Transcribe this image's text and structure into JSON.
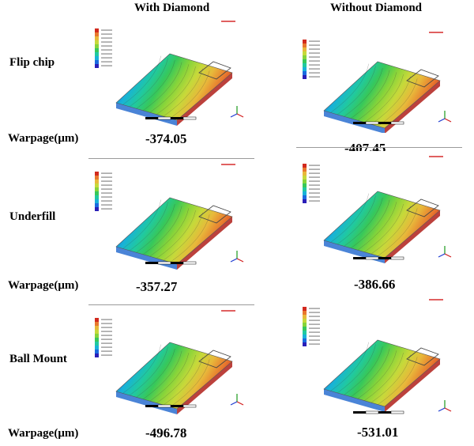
{
  "headers": {
    "with": "With Diamond",
    "without": "Without Diamond"
  },
  "rows": [
    {
      "label": "Flip chip",
      "warpage_label": "Warpage(μm)",
      "with_value": "-374.05",
      "without_value": "-407.45"
    },
    {
      "label": "Underfill",
      "warpage_label": "Warpage(μm)",
      "with_value": "-357.27",
      "without_value": "-386.66"
    },
    {
      "label": "Ball Mount",
      "warpage_label": "Warpage(μm)",
      "with_value": "-496.78",
      "without_value": "-531.01"
    }
  ],
  "colormap": [
    "#2a1fb8",
    "#1a6be0",
    "#18b2d8",
    "#20c9a0",
    "#37c85a",
    "#86d43a",
    "#c6d93a",
    "#e8b83a",
    "#e8782e",
    "#d22a1e"
  ]
}
